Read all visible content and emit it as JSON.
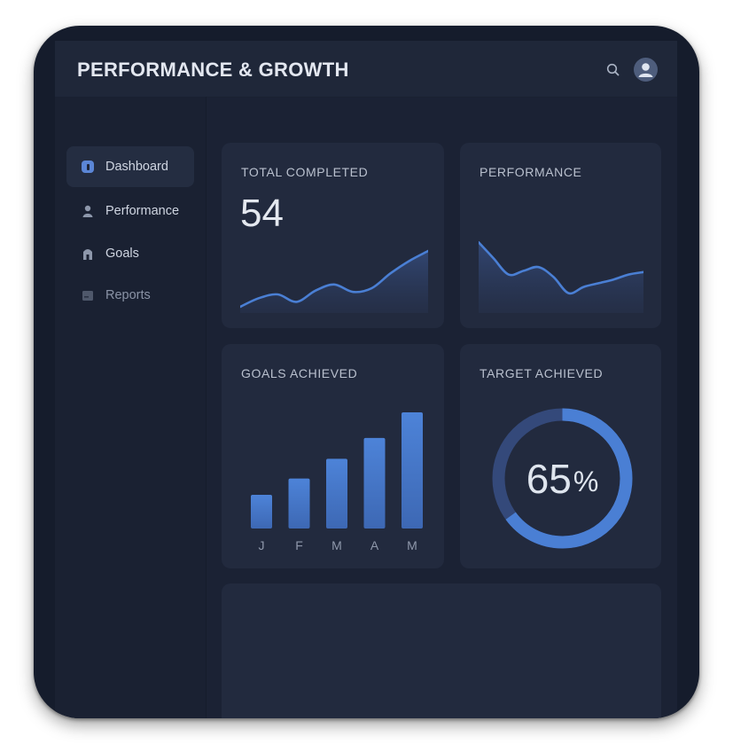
{
  "header": {
    "title": "PERFORMANCE & GROWTH",
    "search_icon": "search-icon",
    "avatar_icon": "user-avatar-icon"
  },
  "sidebar": {
    "items": [
      {
        "label": "Dashboard",
        "icon": "dashboard-icon",
        "active": true
      },
      {
        "label": "Performance",
        "icon": "person-icon",
        "active": false
      },
      {
        "label": "Goals",
        "icon": "goals-icon",
        "active": false
      },
      {
        "label": "Reports",
        "icon": "reports-icon",
        "active": false
      }
    ]
  },
  "cards": {
    "total_completed": {
      "title": "TOTAL COMPLETED",
      "value": "54"
    },
    "performance": {
      "title": "PERFORMANCE"
    },
    "goals_achieved": {
      "title": "GOALS ACHIEVED"
    },
    "target_achieved": {
      "title": "TARGET ACHIEVED",
      "value": "65",
      "unit": "%"
    }
  },
  "colors": {
    "accent": "#4a7fd4",
    "background": "#1b2234",
    "card": "#222a3e",
    "text": "#e3e7f0"
  },
  "chart_data": [
    {
      "type": "area",
      "card": "total_completed",
      "title": "",
      "xlabel": "",
      "ylabel": "",
      "x": [
        0,
        1,
        2,
        3,
        4,
        5,
        6,
        7,
        8,
        9,
        10
      ],
      "values": [
        5,
        12,
        15,
        9,
        18,
        23,
        17,
        20,
        32,
        42,
        50
      ],
      "ylim": [
        0,
        60
      ],
      "grid": false
    },
    {
      "type": "area",
      "card": "performance",
      "title": "",
      "xlabel": "",
      "ylabel": "",
      "x": [
        0,
        1,
        2,
        3,
        4,
        5,
        6,
        7,
        8,
        9,
        10,
        11
      ],
      "values": [
        57,
        44,
        31,
        34,
        37,
        29,
        16,
        21,
        24,
        27,
        31,
        33
      ],
      "ylim": [
        0,
        60
      ],
      "grid": false
    },
    {
      "type": "bar",
      "card": "goals_achieved",
      "title": "",
      "xlabel": "",
      "ylabel": "",
      "categories": [
        "J",
        "F",
        "M",
        "A",
        "M"
      ],
      "values": [
        29,
        43,
        60,
        78,
        100
      ],
      "ylim": [
        0,
        100
      ],
      "grid": false
    },
    {
      "type": "pie",
      "card": "target_achieved",
      "title": "",
      "values": [
        65,
        35
      ],
      "categories": [
        "achieved",
        "remaining"
      ]
    }
  ]
}
